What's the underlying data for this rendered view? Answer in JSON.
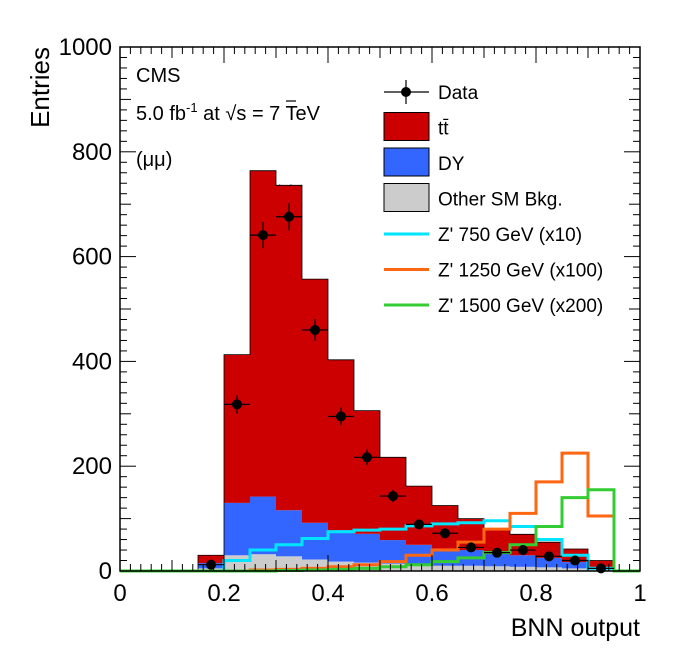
{
  "chart_data": {
    "type": "bar",
    "subtype": "stacked-histogram",
    "xlabel": "BNN output",
    "ylabel": "Entries",
    "xlim": [
      0,
      1
    ],
    "ylim": [
      0,
      1000
    ],
    "x_ticks": [
      "0",
      "0.2",
      "0.4",
      "0.6",
      "0.8",
      "1"
    ],
    "y_ticks": [
      "0",
      "200",
      "400",
      "600",
      "800",
      "1000"
    ],
    "annotations": {
      "experiment": "CMS",
      "lumi_value": "5.0 fb",
      "lumi_exp": "-1",
      "lumi_at": " at ",
      "sqrt_sym": "√",
      "energy": "s = 7 TeV",
      "channel": "(μμ)"
    },
    "bin_edges": [
      0.0,
      0.05,
      0.1,
      0.15,
      0.2,
      0.25,
      0.3,
      0.35,
      0.4,
      0.45,
      0.5,
      0.55,
      0.6,
      0.65,
      0.7,
      0.75,
      0.8,
      0.85,
      0.9,
      0.95,
      1.0
    ],
    "stack": [
      {
        "name": "Other SM Bkg.",
        "color": "#cccccc",
        "values": [
          0,
          0,
          0,
          5,
          30,
          32,
          28,
          22,
          18,
          16,
          14,
          12,
          10,
          10,
          9,
          8,
          7,
          5,
          3,
          0
        ]
      },
      {
        "name": "DY",
        "color": "#3366ff",
        "values": [
          0,
          0,
          0,
          10,
          100,
          110,
          88,
          70,
          60,
          55,
          45,
          38,
          33,
          30,
          25,
          22,
          18,
          12,
          5,
          0
        ]
      },
      {
        "name": "tt̄",
        "color": "#cc0000",
        "values": [
          0,
          0,
          0,
          15,
          283,
          622,
          620,
          465,
          325,
          235,
          158,
          112,
          82,
          60,
          47,
          40,
          30,
          25,
          12,
          0
        ]
      }
    ],
    "uncertainty_band": {
      "upper": [
        0,
        0,
        0,
        18,
        333,
        738,
        738,
        538,
        385,
        268,
        188,
        130,
        95,
        70,
        55,
        48,
        38,
        30,
        15,
        0
      ]
    },
    "data": {
      "name": "Data",
      "x": [
        0.175,
        0.225,
        0.275,
        0.325,
        0.375,
        0.425,
        0.475,
        0.525,
        0.575,
        0.625,
        0.675,
        0.725,
        0.775,
        0.825,
        0.875,
        0.925
      ],
      "y": [
        12,
        318,
        641,
        676,
        460,
        295,
        217,
        143,
        89,
        72,
        45,
        35,
        40,
        28,
        20,
        5
      ],
      "yerr": [
        5,
        18,
        25,
        26,
        21,
        17,
        15,
        12,
        9,
        8,
        7,
        6,
        6,
        5,
        4,
        2
      ]
    },
    "signals": [
      {
        "name": "Z'  750 GeV (x10)",
        "color": "#00e5ff",
        "values": [
          0,
          0,
          0,
          0,
          20,
          40,
          50,
          62,
          75,
          78,
          80,
          86,
          90,
          92,
          96,
          85,
          60,
          30,
          5,
          0
        ]
      },
      {
        "name": "Z' 1250 GeV (x100)",
        "color": "#ff6611",
        "values": [
          0,
          0,
          0,
          0,
          0,
          2,
          3,
          5,
          8,
          12,
          18,
          30,
          40,
          55,
          80,
          110,
          170,
          225,
          105,
          0
        ]
      },
      {
        "name": "Z' 1500 GeV (x200)",
        "color": "#33cc33",
        "values": [
          0,
          0,
          0,
          0,
          0,
          0,
          1,
          2,
          3,
          5,
          8,
          12,
          18,
          25,
          35,
          50,
          85,
          140,
          155,
          0
        ]
      }
    ],
    "legend": {
      "position": "top-right",
      "entries": [
        "Data",
        "tt̄",
        "DY",
        "Other SM Bkg.",
        "Z'  750 GeV (x10)",
        "Z' 1250 GeV (x100)",
        "Z' 1500 GeV (x200)"
      ]
    }
  }
}
